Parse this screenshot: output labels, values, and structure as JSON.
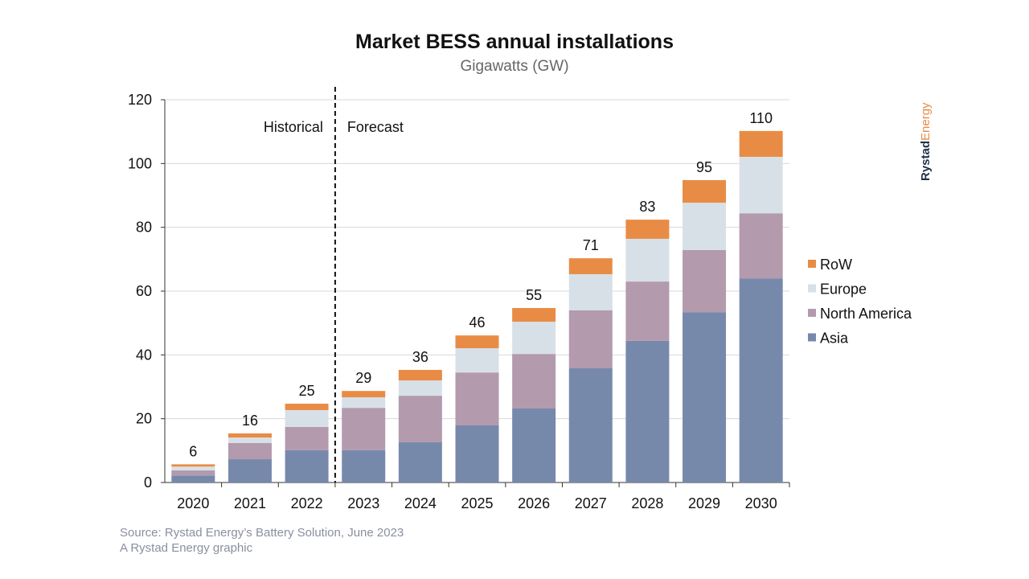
{
  "chart_data": {
    "type": "bar",
    "stacked": true,
    "title": "Market BESS annual installations",
    "subtitle": "Gigawatts (GW)",
    "xlabel": "",
    "ylabel": "",
    "ylim": [
      0,
      120
    ],
    "yticks": [
      0,
      20,
      40,
      60,
      80,
      100,
      120
    ],
    "grid": true,
    "legend_position": "right",
    "categories": [
      "2020",
      "2021",
      "2022",
      "2023",
      "2024",
      "2025",
      "2026",
      "2027",
      "2028",
      "2029",
      "2030"
    ],
    "series": [
      {
        "name": "Asia",
        "color": "#7789ab",
        "values": [
          2.2,
          7.3,
          10.1,
          10.1,
          12.6,
          17.9,
          23.2,
          35.8,
          44.4,
          53.4,
          64.0
        ]
      },
      {
        "name": "North America",
        "color": "#b39aad",
        "values": [
          1.6,
          5.1,
          7.3,
          13.3,
          14.6,
          16.6,
          17.1,
          18.2,
          18.6,
          19.5,
          20.4
        ]
      },
      {
        "name": "Europe",
        "color": "#d8e0e7",
        "values": [
          1.2,
          1.7,
          5.3,
          3.3,
          4.8,
          7.6,
          10.1,
          11.3,
          13.4,
          14.8,
          17.7
        ]
      },
      {
        "name": "RoW",
        "color": "#e88c45",
        "values": [
          0.7,
          1.3,
          2.0,
          2.0,
          3.3,
          4.0,
          4.3,
          5.0,
          6.0,
          7.1,
          8.1
        ]
      }
    ],
    "totals": [
      "6",
      "16",
      "25",
      "29",
      "36",
      "46",
      "55",
      "71",
      "83",
      "95",
      "110"
    ],
    "annotations": {
      "historical": "Historical",
      "forecast": "Forecast",
      "divider_after": "2022"
    }
  },
  "footer": {
    "source": "Source: Rystad Energy’s Battery Solution, June 2023",
    "credit": "A Rystad Energy graphic"
  },
  "logo": {
    "part1": "Rystad",
    "part2": "Energy"
  }
}
